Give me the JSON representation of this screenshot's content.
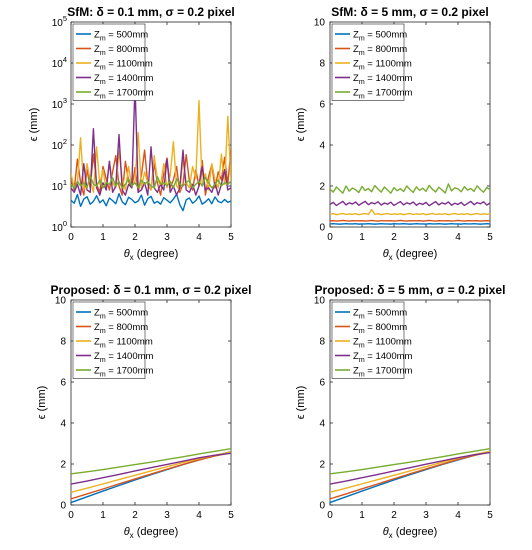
{
  "chart_data": [
    {
      "type": "line",
      "title": "SfM: δ = 0.1 mm, σ = 0.2 pixel",
      "xlabel": "θx (degree)",
      "ylabel": "ϵ (mm)",
      "yscale": "log",
      "xlim": [
        0,
        5
      ],
      "ylim": [
        1,
        100000
      ],
      "xticks": [
        "0",
        "1",
        "2",
        "3",
        "4",
        "5"
      ],
      "yticks": [
        "10^0",
        "10^1",
        "10^2",
        "10^3",
        "10^4",
        "10^5"
      ],
      "legend_position": "top-left",
      "grid": false,
      "x_start": 0,
      "x_step": 0.1,
      "series": [
        {
          "name": "Zm = 500mm",
          "color": "#0072BD",
          "values": [
            4.5,
            3.8,
            6.2,
            3.2,
            4.8,
            5.5,
            3.6,
            4.2,
            5.8,
            3.9,
            4.6,
            3.3,
            5.1,
            4.4,
            3.7,
            6.5,
            4.1,
            3.5,
            5.3,
            4.7,
            3.9,
            4.3,
            6.0,
            3.4,
            4.9,
            5.6,
            3.8,
            4.2,
            3.6,
            5.2,
            4.5,
            3.9,
            4.8,
            6.3,
            3.5,
            2.5,
            4.6,
            5.1,
            3.8,
            4.4,
            5.7,
            3.6,
            4.1,
            4.9,
            3.7,
            5.4,
            4.2,
            3.9,
            4.7,
            4.0,
            4.3
          ]
        },
        {
          "name": "Zm = 800mm",
          "color": "#D95319",
          "values": [
            14,
            8,
            45,
            12,
            6,
            25,
            9,
            60,
            11,
            7,
            30,
            15,
            8,
            22,
            55,
            10,
            6,
            40,
            13,
            9,
            28,
            7,
            18,
            75,
            11,
            8,
            35,
            12,
            6,
            20,
            48,
            9,
            14,
            30,
            7,
            11,
            58,
            13,
            8,
            25,
            10,
            42,
            6,
            17,
            33,
            9,
            22,
            14,
            50,
            11,
            80
          ]
        },
        {
          "name": "Zm = 1100mm",
          "color": "#EDB120",
          "values": [
            20,
            9,
            12,
            150,
            8,
            35,
            14,
            7,
            90,
            11,
            25,
            8,
            40,
            12,
            9,
            70,
            15,
            8,
            30,
            10,
            13,
            200,
            9,
            22,
            12,
            8,
            55,
            14,
            11,
            35,
            9,
            18,
            120,
            10,
            8,
            45,
            12,
            9,
            30,
            15,
            1200,
            10,
            20,
            8,
            35,
            14,
            9,
            60,
            11,
            500,
            13
          ]
        },
        {
          "name": "Zm = 1400mm",
          "color": "#7E2F8E",
          "values": [
            9,
            7,
            11,
            6,
            35,
            8,
            7,
            250,
            9,
            6,
            12,
            8,
            40,
            7,
            10,
            180,
            8,
            6,
            11,
            9,
            3000,
            7,
            8,
            12,
            6,
            90,
            9,
            7,
            11,
            8,
            45,
            7,
            10,
            6,
            9,
            75,
            8,
            7,
            11,
            6,
            10,
            30,
            8,
            9,
            7,
            12,
            6,
            11,
            25,
            8,
            9
          ]
        },
        {
          "name": "Zm = 1700mm",
          "color": "#77AC30",
          "values": [
            11,
            9,
            13,
            10,
            12,
            9,
            18,
            11,
            10,
            14,
            9,
            12,
            11,
            16,
            10,
            13,
            9,
            11,
            15,
            10,
            12,
            9,
            14,
            11,
            13,
            10,
            9,
            17,
            11,
            12,
            10,
            13,
            9,
            15,
            11,
            10,
            12,
            14,
            9,
            11,
            13,
            10,
            16,
            12,
            9,
            11,
            14,
            10,
            12,
            11,
            13
          ]
        }
      ]
    },
    {
      "type": "line",
      "title": "SfM: δ = 5 mm, σ = 0.2 pixel",
      "xlabel": "θx (degree)",
      "ylabel": "ϵ (mm)",
      "xlim": [
        0,
        5
      ],
      "ylim": [
        0,
        10
      ],
      "xticks": [
        "0",
        "1",
        "2",
        "3",
        "4",
        "5"
      ],
      "yticks": [
        "0",
        "2",
        "4",
        "6",
        "8",
        "10"
      ],
      "legend_position": "top-left",
      "grid": false,
      "x_start": 0,
      "x_step": 0.1,
      "series": [
        {
          "name": "Zm = 500mm",
          "color": "#0072BD",
          "values": [
            0.15,
            0.16,
            0.15,
            0.14,
            0.15,
            0.16,
            0.15,
            0.15,
            0.16,
            0.14,
            0.15,
            0.15,
            0.16,
            0.15,
            0.14,
            0.15,
            0.16,
            0.15,
            0.15,
            0.14,
            0.16,
            0.15,
            0.15,
            0.16,
            0.15,
            0.14,
            0.15,
            0.16,
            0.15,
            0.15,
            0.14,
            0.16,
            0.15,
            0.15,
            0.16,
            0.15,
            0.14,
            0.15,
            0.16,
            0.15,
            0.15,
            0.14,
            0.16,
            0.15,
            0.15,
            0.16,
            0.15,
            0.14,
            0.15,
            0.16,
            0.15
          ]
        },
        {
          "name": "Zm = 800mm",
          "color": "#D95319",
          "values": [
            0.3,
            0.31,
            0.29,
            0.3,
            0.32,
            0.3,
            0.29,
            0.31,
            0.3,
            0.3,
            0.31,
            0.29,
            0.3,
            0.32,
            0.3,
            0.29,
            0.31,
            0.3,
            0.3,
            0.31,
            0.29,
            0.3,
            0.32,
            0.3,
            0.29,
            0.31,
            0.3,
            0.3,
            0.31,
            0.29,
            0.3,
            0.32,
            0.3,
            0.29,
            0.31,
            0.3,
            0.3,
            0.31,
            0.29,
            0.3,
            0.32,
            0.3,
            0.29,
            0.31,
            0.3,
            0.3,
            0.31,
            0.29,
            0.3,
            0.31,
            0.3
          ]
        },
        {
          "name": "Zm = 1100mm",
          "color": "#EDB120",
          "values": [
            0.62,
            0.65,
            0.6,
            0.63,
            0.66,
            0.61,
            0.64,
            0.62,
            0.65,
            0.6,
            0.63,
            0.66,
            0.61,
            0.85,
            0.62,
            0.65,
            0.6,
            0.63,
            0.66,
            0.61,
            0.64,
            0.62,
            0.65,
            0.6,
            0.63,
            0.66,
            0.61,
            0.64,
            0.62,
            0.65,
            0.6,
            0.63,
            0.66,
            0.61,
            0.64,
            0.62,
            0.65,
            0.6,
            0.63,
            0.66,
            0.61,
            0.64,
            0.62,
            0.65,
            0.6,
            0.63,
            0.66,
            0.61,
            0.64,
            0.62,
            0.65
          ]
        },
        {
          "name": "Zm = 1400mm",
          "color": "#7E2F8E",
          "values": [
            1.1,
            1.2,
            1.05,
            1.15,
            1.25,
            1.08,
            1.18,
            1.12,
            1.22,
            1.06,
            1.16,
            1.25,
            1.09,
            1.19,
            1.13,
            1.23,
            1.07,
            1.17,
            1.11,
            1.21,
            1.05,
            1.15,
            1.24,
            1.08,
            1.18,
            1.12,
            1.22,
            1.06,
            1.16,
            1.1,
            1.2,
            1.04,
            1.14,
            1.24,
            1.08,
            1.18,
            1.12,
            1.22,
            1.06,
            1.16,
            1.1,
            1.2,
            1.05,
            1.15,
            1.25,
            1.09,
            1.19,
            1.13,
            1.23,
            1.07,
            1.17
          ]
        },
        {
          "name": "Zm = 1700mm",
          "color": "#77AC30",
          "values": [
            1.85,
            1.7,
            1.95,
            1.8,
            1.65,
            2.0,
            1.75,
            1.9,
            1.82,
            1.68,
            1.98,
            1.78,
            1.88,
            1.72,
            2.02,
            1.85,
            1.7,
            1.95,
            1.8,
            1.65,
            1.92,
            1.77,
            1.87,
            1.73,
            2.0,
            1.83,
            1.69,
            1.96,
            1.79,
            1.89,
            1.74,
            2.03,
            1.84,
            1.71,
            1.94,
            1.81,
            1.66,
            2.1,
            1.76,
            1.91,
            1.86,
            1.72,
            1.97,
            1.8,
            1.88,
            1.74,
            2.01,
            1.83,
            1.7,
            1.93,
            1.82
          ]
        }
      ]
    },
    {
      "type": "line",
      "title": "Proposed: δ = 0.1 mm, σ = 0.2 pixel",
      "xlabel": "θx (degree)",
      "ylabel": "ϵ (mm)",
      "xlim": [
        0,
        5
      ],
      "ylim": [
        0,
        10
      ],
      "xticks": [
        "0",
        "1",
        "2",
        "3",
        "4",
        "5"
      ],
      "yticks": [
        "0",
        "2",
        "4",
        "6",
        "8",
        "10"
      ],
      "legend_position": "top-left",
      "grid": false,
      "x": [
        0,
        0.5,
        1,
        1.5,
        2,
        2.5,
        3,
        3.5,
        4,
        4.5,
        5
      ],
      "series": [
        {
          "name": "Zm = 500mm",
          "color": "#0072BD",
          "values": [
            0.12,
            0.4,
            0.68,
            0.95,
            1.22,
            1.48,
            1.73,
            1.97,
            2.2,
            2.41,
            2.6
          ]
        },
        {
          "name": "Zm = 800mm",
          "color": "#D95319",
          "values": [
            0.3,
            0.54,
            0.78,
            1.03,
            1.27,
            1.51,
            1.75,
            1.98,
            2.2,
            2.39,
            2.55
          ]
        },
        {
          "name": "Zm = 1100mm",
          "color": "#EDB120",
          "values": [
            0.62,
            0.82,
            1.03,
            1.24,
            1.45,
            1.66,
            1.87,
            2.07,
            2.26,
            2.43,
            2.58
          ]
        },
        {
          "name": "Zm = 1400mm",
          "color": "#7E2F8E",
          "values": [
            1.02,
            1.17,
            1.33,
            1.49,
            1.66,
            1.82,
            1.98,
            2.14,
            2.3,
            2.43,
            2.52
          ]
        },
        {
          "name": "Zm = 1700mm",
          "color": "#77AC30",
          "values": [
            1.52,
            1.62,
            1.73,
            1.85,
            1.97,
            2.09,
            2.22,
            2.35,
            2.49,
            2.62,
            2.75
          ]
        }
      ]
    },
    {
      "type": "line",
      "title": "Proposed: δ = 5 mm, σ = 0.2 pixel",
      "xlabel": "θx (degree)",
      "ylabel": "ϵ (mm)",
      "xlim": [
        0,
        5
      ],
      "ylim": [
        0,
        10
      ],
      "xticks": [
        "0",
        "1",
        "2",
        "3",
        "4",
        "5"
      ],
      "yticks": [
        "0",
        "2",
        "4",
        "6",
        "8",
        "10"
      ],
      "legend_position": "top-left",
      "grid": false,
      "x": [
        0,
        0.5,
        1,
        1.5,
        2,
        2.5,
        3,
        3.5,
        4,
        4.5,
        5
      ],
      "series": [
        {
          "name": "Zm = 500mm",
          "color": "#0072BD",
          "values": [
            0.12,
            0.4,
            0.68,
            0.95,
            1.22,
            1.48,
            1.73,
            1.97,
            2.2,
            2.42,
            2.62
          ]
        },
        {
          "name": "Zm = 800mm",
          "color": "#D95319",
          "values": [
            0.3,
            0.54,
            0.79,
            1.03,
            1.28,
            1.52,
            1.76,
            1.99,
            2.22,
            2.42,
            2.58
          ]
        },
        {
          "name": "Zm = 1100mm",
          "color": "#EDB120",
          "values": [
            0.62,
            0.82,
            1.03,
            1.24,
            1.45,
            1.66,
            1.87,
            2.08,
            2.28,
            2.46,
            2.62
          ]
        },
        {
          "name": "Zm = 1400mm",
          "color": "#7E2F8E",
          "values": [
            1.02,
            1.17,
            1.33,
            1.49,
            1.66,
            1.82,
            1.99,
            2.15,
            2.31,
            2.45,
            2.56
          ]
        },
        {
          "name": "Zm = 1700mm",
          "color": "#77AC30",
          "values": [
            1.52,
            1.62,
            1.73,
            1.85,
            1.97,
            2.09,
            2.22,
            2.35,
            2.49,
            2.62,
            2.75
          ]
        }
      ]
    }
  ]
}
